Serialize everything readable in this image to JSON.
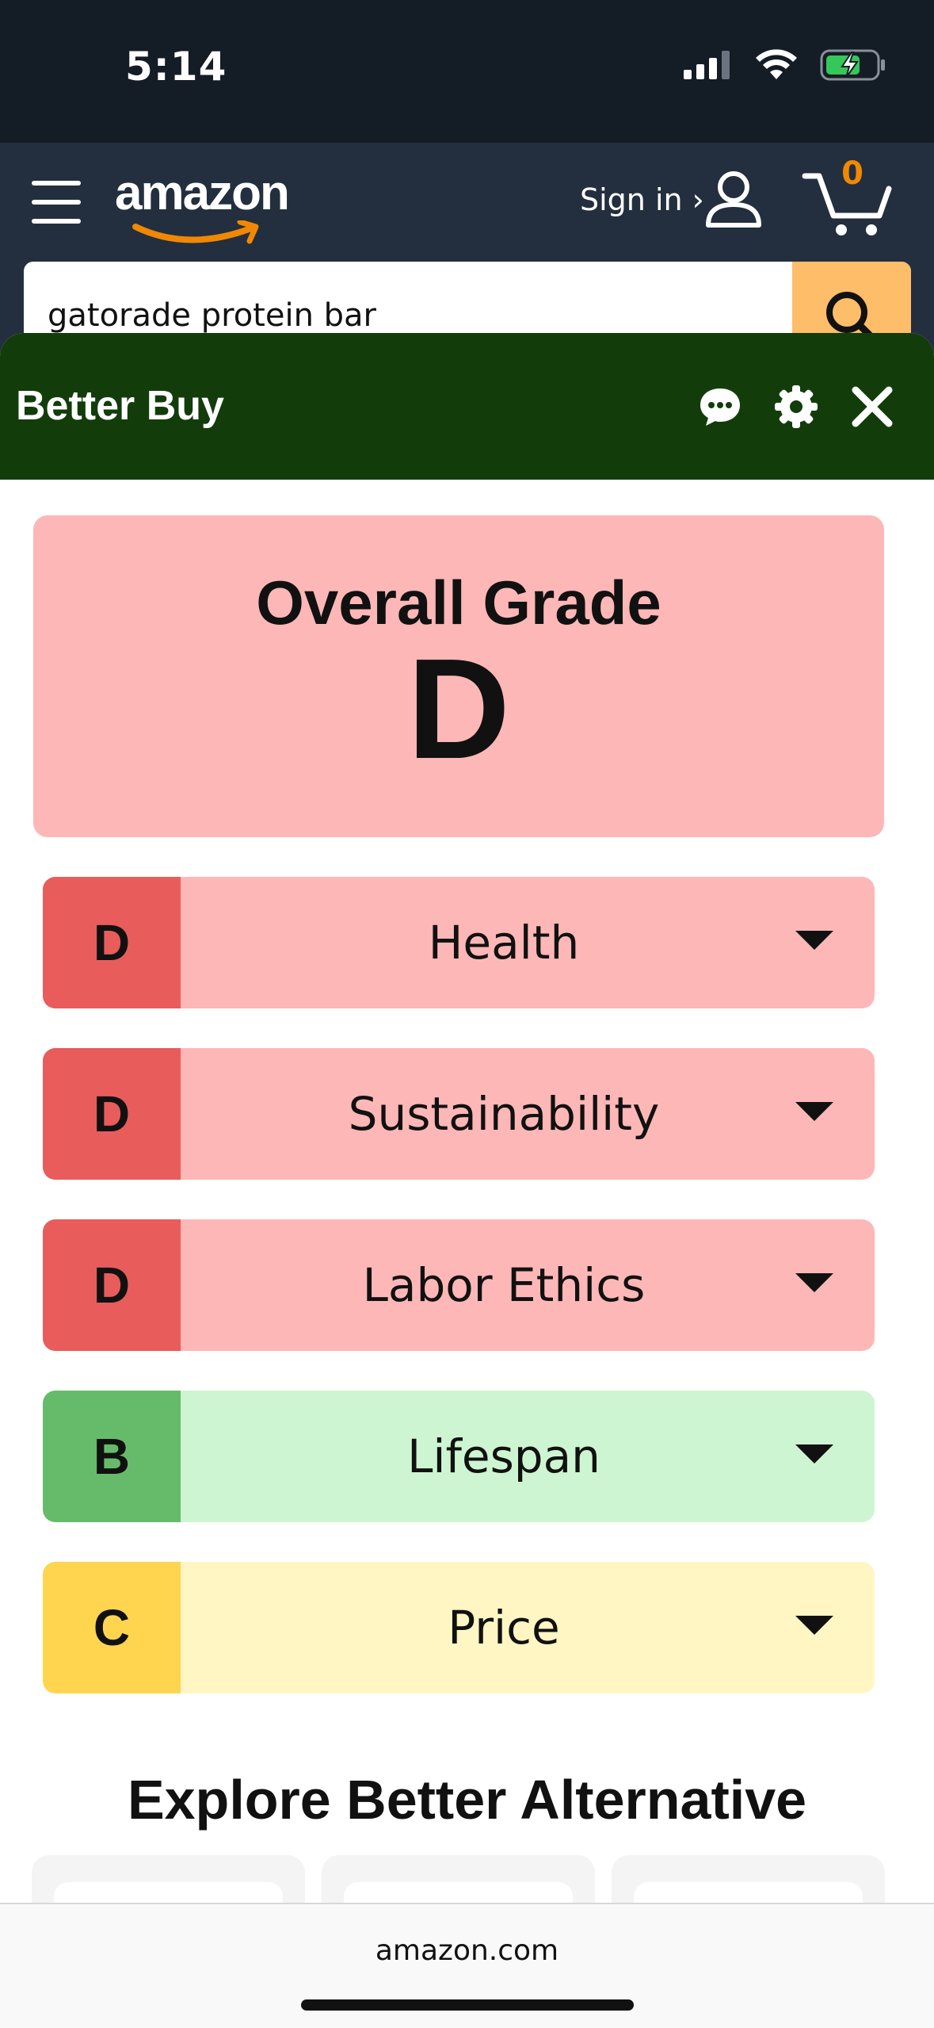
{
  "status_bar": {
    "time": "5:14"
  },
  "amazon_header": {
    "logo_text": "amazon",
    "sign_in_label": "Sign in ›",
    "cart_count": "0",
    "search_value": "gatorade protein bar"
  },
  "panel": {
    "title": "Better Buy",
    "overall_label": "Overall Grade",
    "overall_grade": "D",
    "categories": [
      {
        "grade": "D",
        "label": "Health",
        "grade_color": "#e85c5c",
        "bg_color": "#feb7b7"
      },
      {
        "grade": "D",
        "label": "Sustainability",
        "grade_color": "#e85c5c",
        "bg_color": "#feb7b7"
      },
      {
        "grade": "D",
        "label": "Labor Ethics",
        "grade_color": "#e85c5c",
        "bg_color": "#feb7b7"
      },
      {
        "grade": "B",
        "label": "Lifespan",
        "grade_color": "#66bb6a",
        "bg_color": "#cef5d1"
      },
      {
        "grade": "C",
        "label": "Price",
        "grade_color": "#ffd54f",
        "bg_color": "#fff6c4"
      }
    ],
    "explore_title": "Explore Better Alternative"
  },
  "browser": {
    "url": "amazon.com"
  },
  "icons": {
    "header": [
      "menu-icon",
      "user-icon",
      "cart-icon",
      "search-icon"
    ],
    "panel": [
      "chat-icon",
      "gear-icon",
      "close-icon"
    ]
  }
}
